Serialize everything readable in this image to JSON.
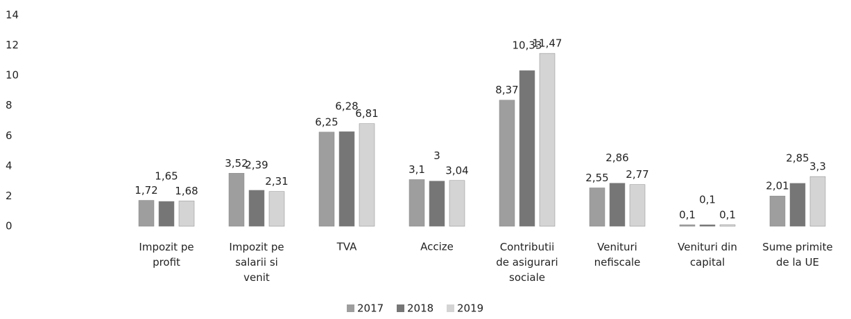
{
  "chart_data": {
    "type": "bar",
    "categories": [
      "Impozit pe\nprofit",
      "Impozit pe\nsalarii si\nvenit",
      "TVA",
      "Accize",
      "Contributii\nde asigurari\nsociale",
      "Venituri\nnefiscale",
      "Venituri din\ncapital",
      "Sume primite\nde la UE"
    ],
    "series": [
      {
        "name": "2017",
        "color": "#9e9e9e",
        "values": [
          1.72,
          3.52,
          6.25,
          3.1,
          8.37,
          2.55,
          0.1,
          2.01
        ],
        "value_labels": [
          "1,72",
          "3,52",
          "6,25",
          "3,1",
          "8,37",
          "2,55",
          "0,1",
          "2,01"
        ]
      },
      {
        "name": "2018",
        "color": "#767676",
        "values": [
          1.65,
          2.39,
          6.28,
          3,
          10.33,
          2.86,
          0.1,
          2.85
        ],
        "value_labels": [
          "1,65",
          "2,39",
          "6,28",
          "3",
          "10,33",
          "2,86",
          "0,1",
          "2,85"
        ]
      },
      {
        "name": "2019",
        "color": "#d4d4d4",
        "values": [
          1.68,
          2.31,
          6.81,
          3.04,
          11.47,
          2.77,
          0.1,
          3.3
        ],
        "value_labels": [
          "1,68",
          "2,31",
          "6,81",
          "3,04",
          "11,47",
          "2,77",
          "0,1",
          "3,3"
        ]
      }
    ],
    "ylim": [
      0,
      14
    ],
    "yticks": [
      0,
      2,
      4,
      6,
      8,
      10,
      12,
      14
    ],
    "grid": false
  }
}
